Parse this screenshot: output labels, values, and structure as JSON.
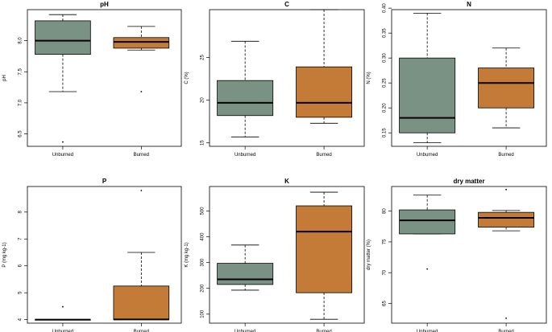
{
  "colors": {
    "unburned": "#7a9283",
    "burned": "#c47b37",
    "axis": "#000000"
  },
  "chart_data": [
    {
      "type": "boxplot",
      "title": "pH",
      "ylabel": "pH",
      "categories": [
        "Unburned",
        "Burned"
      ],
      "ylim": [
        6.3,
        8.5
      ],
      "yticks": [
        6.5,
        7.0,
        7.5,
        8.0
      ],
      "ytick_labels": [
        "6.5",
        "7.0",
        "7.5",
        "8.0"
      ],
      "series": [
        {
          "name": "Unburned",
          "min": 7.18,
          "q1": 7.78,
          "median": 8.0,
          "q3": 8.32,
          "max": 8.42,
          "outliers": [
            6.37
          ]
        },
        {
          "name": "Burned",
          "min": 7.85,
          "q1": 7.88,
          "median": 7.98,
          "q3": 8.05,
          "max": 8.23,
          "outliers": [
            7.18
          ]
        }
      ]
    },
    {
      "type": "boxplot",
      "title": "C",
      "ylabel": "C (%)",
      "categories": [
        "Unburned",
        "Burned"
      ],
      "ylim": [
        14.6,
        30.6
      ],
      "yticks": [
        15,
        20,
        25
      ],
      "ytick_labels": [
        "15",
        "20",
        "25"
      ],
      "series": [
        {
          "name": "Unburned",
          "min": 15.7,
          "q1": 18.2,
          "median": 19.7,
          "q3": 22.3,
          "max": 26.9,
          "outliers": []
        },
        {
          "name": "Burned",
          "min": 17.3,
          "q1": 18.0,
          "median": 19.7,
          "q3": 23.9,
          "max": 30.6,
          "outliers": []
        }
      ]
    },
    {
      "type": "boxplot",
      "title": "N",
      "ylabel": "N (%)",
      "categories": [
        "Unburned",
        "Burned"
      ],
      "ylim": [
        0.123,
        0.397
      ],
      "yticks": [
        0.15,
        0.2,
        0.25,
        0.3,
        0.35,
        0.4
      ],
      "ytick_labels": [
        "0.15",
        "0.20",
        "0.25",
        "0.30",
        "0.35",
        "0.40"
      ],
      "series": [
        {
          "name": "Unburned",
          "min": 0.13,
          "q1": 0.15,
          "median": 0.18,
          "q3": 0.3,
          "max": 0.39,
          "outliers": []
        },
        {
          "name": "Burned",
          "min": 0.16,
          "q1": 0.2,
          "median": 0.25,
          "q3": 0.28,
          "max": 0.32,
          "outliers": []
        }
      ]
    },
    {
      "type": "boxplot",
      "title": "P",
      "ylabel": "P (mg kg-1)",
      "categories": [
        "Unburned",
        "Burned"
      ],
      "ylim": [
        3.87,
        8.95
      ],
      "yticks": [
        4,
        5,
        6,
        7,
        8
      ],
      "ytick_labels": [
        "4",
        "5",
        "6",
        "7",
        "8"
      ],
      "series": [
        {
          "name": "Unburned",
          "min": 4.0,
          "q1": 4.0,
          "median": 4.0,
          "q3": 4.0,
          "max": 4.0,
          "outliers": [
            4.48
          ]
        },
        {
          "name": "Burned",
          "min": 4.0,
          "q1": 4.0,
          "median": 4.01,
          "q3": 5.25,
          "max": 6.5,
          "outliers": [
            8.8
          ]
        }
      ]
    },
    {
      "type": "boxplot",
      "title": "K",
      "ylabel": "K (mg kg-1)",
      "categories": [
        "Unburned",
        "Burned"
      ],
      "ylim": [
        65,
        595
      ],
      "yticks": [
        100,
        200,
        300,
        400,
        500
      ],
      "ytick_labels": [
        "100",
        "200",
        "300",
        "400",
        "500"
      ],
      "series": [
        {
          "name": "Unburned",
          "min": 193,
          "q1": 215,
          "median": 235,
          "q3": 297,
          "max": 368,
          "outliers": []
        },
        {
          "name": "Burned",
          "min": 80,
          "q1": 183,
          "median": 420,
          "q3": 520,
          "max": 573,
          "outliers": []
        }
      ]
    },
    {
      "type": "boxplot",
      "title": "dry matter",
      "ylabel": "dry matter (%)",
      "categories": [
        "Unburned",
        "Burned"
      ],
      "ylim": [
        61.8,
        84.0
      ],
      "yticks": [
        65,
        70,
        75,
        80
      ],
      "ytick_labels": [
        "65",
        "70",
        "75",
        "80"
      ],
      "series": [
        {
          "name": "Unburned",
          "min": 76.3,
          "q1": 76.3,
          "median": 78.5,
          "q3": 80.2,
          "max": 82.6,
          "outliers": [
            70.6
          ]
        },
        {
          "name": "Burned",
          "min": 76.8,
          "q1": 77.4,
          "median": 78.9,
          "q3": 79.8,
          "max": 80.1,
          "outliers": [
            83.5,
            62.6
          ]
        }
      ]
    }
  ]
}
